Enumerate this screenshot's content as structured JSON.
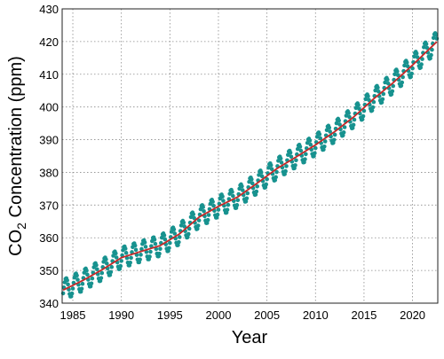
{
  "chart_data": {
    "type": "line",
    "title": "",
    "xlabel": "Year",
    "ylabel": {
      "prefix": "CO",
      "subscript": "2",
      "suffix": " Concentration (ppm)"
    },
    "xlim": [
      1983.9,
      2022.6
    ],
    "ylim": [
      340,
      430
    ],
    "x_ticks": [
      1985,
      1990,
      1995,
      2000,
      2005,
      2010,
      2015,
      2020
    ],
    "y_ticks": [
      340,
      350,
      360,
      370,
      380,
      390,
      400,
      410,
      420,
      430
    ],
    "grid": true,
    "legend": "none",
    "series": [
      {
        "kind": "trend",
        "color": "#c62828",
        "x": [
          1984,
          1986,
          1988,
          1990,
          1992,
          1994,
          1996,
          1998,
          2000,
          2002,
          2004,
          2006,
          2008,
          2010,
          2012,
          2014,
          2016,
          2018,
          2020,
          2022
        ],
        "y": [
          344.0,
          346.9,
          350.2,
          353.9,
          355.8,
          357.6,
          361.2,
          366.3,
          369.6,
          372.5,
          376.7,
          381.1,
          384.7,
          388.4,
          392.5,
          397.1,
          402.5,
          407.4,
          412.8,
          418.5
        ]
      },
      {
        "kind": "monthly",
        "color": "#17928f",
        "seasonal_amplitude_ppm": 3.2,
        "marker": "circle"
      }
    ]
  }
}
